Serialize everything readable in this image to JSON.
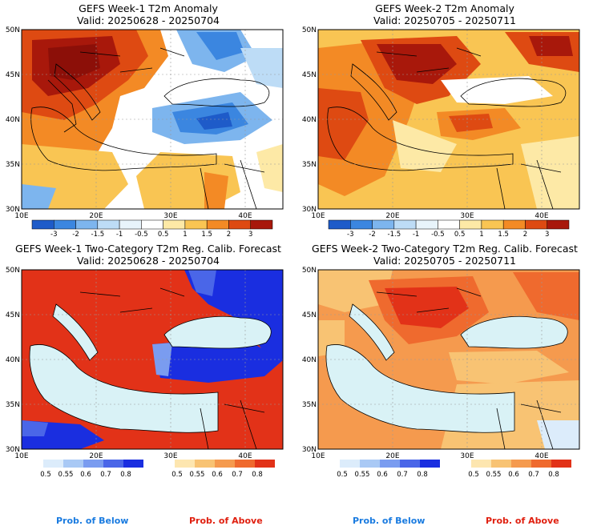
{
  "panels": [
    {
      "id": "w1-anom",
      "title": "GEFS Week-1 T2m Anomaly",
      "valid": "Valid: 20250628 - 20250704",
      "lat_labels": [
        "50N",
        "45N",
        "40N",
        "35N",
        "30N"
      ],
      "lon_labels": [
        "10E",
        "20E",
        "30E",
        "40E"
      ],
      "colorbar_labels": [
        "-3",
        "-2",
        "-1.5",
        "-1",
        "-0.5",
        "0.5",
        "1",
        "1.5",
        "2",
        "3"
      ],
      "colorbar_colors": [
        "#1e5bc9",
        "#3b86e0",
        "#7db5ee",
        "#bddcf6",
        "#e8f4fb",
        "#ffffff",
        "#fde9a6",
        "#f9c553",
        "#f38a25",
        "#de4a12",
        "#a8180b"
      ]
    },
    {
      "id": "w2-anom",
      "title": "GEFS Week-2 T2m Anomaly",
      "valid": "Valid: 20250705 - 20250711",
      "lat_labels": [
        "50N",
        "45N",
        "40N",
        "35N",
        "30N"
      ],
      "lon_labels": [
        "10E",
        "20E",
        "30E",
        "40E"
      ],
      "colorbar_labels": [
        "-3",
        "-2",
        "-1.5",
        "-1",
        "-0.5",
        "0.5",
        "1",
        "1.5",
        "2",
        "3"
      ],
      "colorbar_colors": [
        "#1e5bc9",
        "#3b86e0",
        "#7db5ee",
        "#bddcf6",
        "#e8f4fb",
        "#ffffff",
        "#fde9a6",
        "#f9c553",
        "#f38a25",
        "#de4a12",
        "#a8180b"
      ]
    },
    {
      "id": "w1-prob",
      "title": "GEFS Week-1 Two-Category T2m Reg. Calib. Forecast",
      "valid": "Valid: 20250628 - 20250704",
      "lat_labels": [
        "50N",
        "45N",
        "40N",
        "35N",
        "30N"
      ],
      "lon_labels": [
        "10E",
        "20E",
        "30E",
        "40E"
      ],
      "below_labels": [
        "0.5",
        "0.55",
        "0.6",
        "0.7",
        "0.8"
      ],
      "above_labels": [
        "0.5",
        "0.55",
        "0.6",
        "0.7",
        "0.8"
      ],
      "below_colors": [
        "#dcecfb",
        "#a9c9f5",
        "#7a9cf0",
        "#4a66e8",
        "#1a2ee0"
      ],
      "above_colors": [
        "#fde6b0",
        "#f8c373",
        "#f59a4e",
        "#ef6a2e",
        "#e23218"
      ]
    },
    {
      "id": "w2-prob",
      "title": "GEFS Week-2 Two-Category T2m Reg. Calib. Forecast",
      "valid": "Valid: 20250705 - 20250711",
      "lat_labels": [
        "50N",
        "45N",
        "40N",
        "35N",
        "30N"
      ],
      "lon_labels": [
        "10E",
        "20E",
        "30E",
        "40E"
      ],
      "below_labels": [
        "0.5",
        "0.55",
        "0.6",
        "0.7",
        "0.8"
      ],
      "above_labels": [
        "0.5",
        "0.55",
        "0.6",
        "0.7",
        "0.8"
      ],
      "below_colors": [
        "#dcecfb",
        "#a9c9f5",
        "#7a9cf0",
        "#4a66e8",
        "#1a2ee0"
      ],
      "above_colors": [
        "#fde6b0",
        "#f8c373",
        "#f59a4e",
        "#ef6a2e",
        "#e23218"
      ]
    }
  ],
  "legend": {
    "below_label": "Prob. of Below",
    "above_label": "Prob. of Above",
    "below_color": "#1a7be0",
    "above_color": "#e02010"
  },
  "water_color": "#d9f2f6"
}
